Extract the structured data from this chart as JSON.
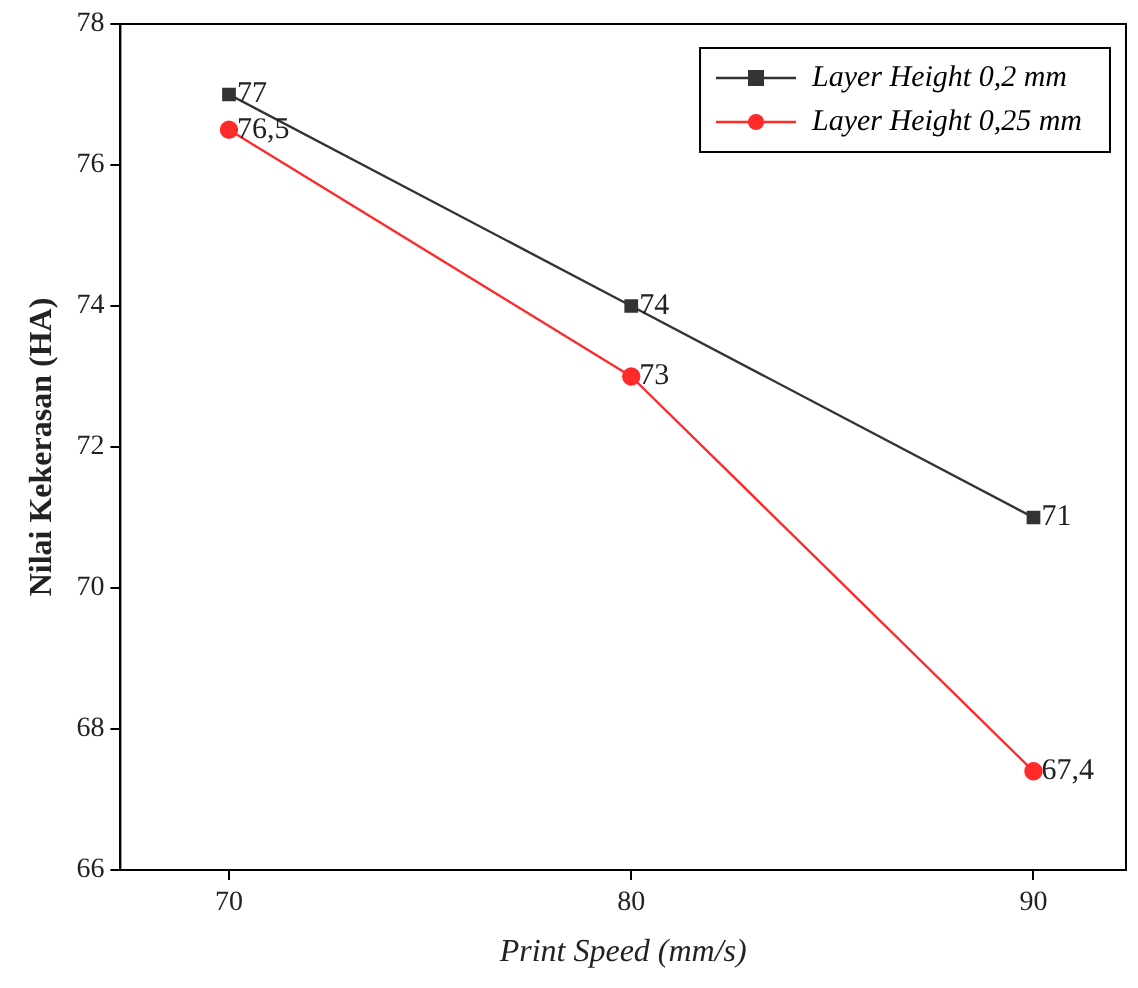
{
  "chart_data": {
    "type": "line",
    "xlabel": "Print Speed (mm/s)",
    "ylabel": "Nilai Kekerasan (HA)",
    "x": [
      70,
      80,
      90
    ],
    "xlim": [
      67.3,
      92.3
    ],
    "xticks": [
      70,
      80,
      90
    ],
    "ylim": [
      66,
      78
    ],
    "yticks": [
      66,
      68,
      70,
      72,
      74,
      76,
      78
    ],
    "grid": false,
    "legend": "top right",
    "line_style": "solid",
    "series": [
      {
        "name": "Layer Height 0,2 mm",
        "color": "#333333",
        "marker": "square",
        "values": [
          77,
          74,
          71
        ],
        "value_labels": [
          "77",
          "74",
          "71"
        ]
      },
      {
        "name": "Layer Height 0,25 mm",
        "color": "#ff2a2a",
        "marker": "circle",
        "values": [
          76.5,
          73,
          67.4
        ],
        "value_labels": [
          "76,5",
          "73",
          "67,4"
        ]
      }
    ]
  }
}
